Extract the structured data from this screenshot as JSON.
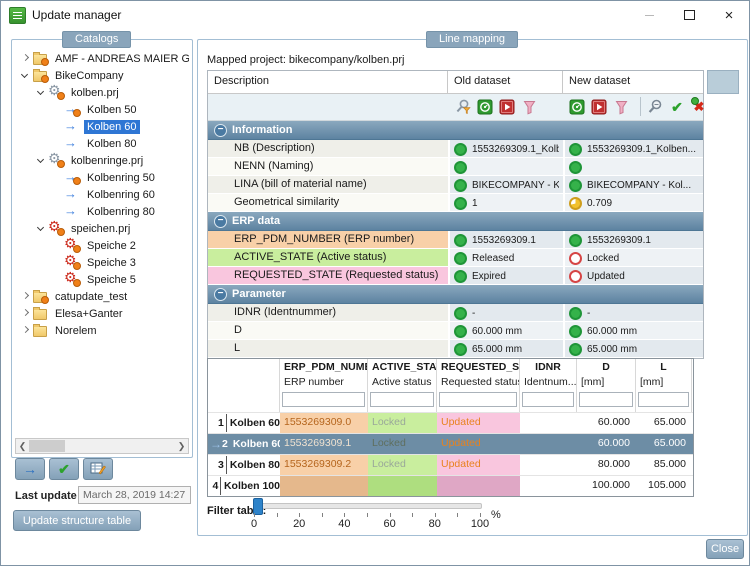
{
  "window": {
    "title": "Update manager",
    "controls": [
      {
        "name": "minimize-button",
        "glyph": "minimize"
      },
      {
        "name": "maximize-button",
        "glyph": "maximize"
      },
      {
        "name": "close-button",
        "glyph": "close"
      }
    ]
  },
  "colors": {
    "selection_blue": "#2e76d4",
    "section_header": "#6f93ad",
    "group_chip": "#8aa5bb",
    "status_ok": "#2fae47",
    "status_error": "#d64545",
    "status_partial": "#f2c12e",
    "erp_tint": "#f8d0a8",
    "active_tint": "#c9ee9e",
    "requested_tint": "#f9c6de",
    "grid_selected_row": "#6d8da5",
    "button_face": "#8fa9bf"
  },
  "catalogs": {
    "label": "Catalogs",
    "items": [
      {
        "label": "AMF - ANDREAS MAIER GMI",
        "level": 0,
        "expander": "collapsed",
        "icon": "folder-badge-icon",
        "selected": false
      },
      {
        "label": "BikeCompany",
        "level": 0,
        "expander": "expanded",
        "icon": "folder-badge-icon",
        "selected": false
      },
      {
        "label": "kolben.prj",
        "level": 1,
        "expander": "expanded",
        "icon": "gear-gray-badge-icon",
        "selected": false
      },
      {
        "label": "Kolben 50",
        "level": 2,
        "expander": "none",
        "icon": "arrow-badge-icon",
        "selected": false
      },
      {
        "label": "Kolben 60",
        "level": 2,
        "expander": "none",
        "icon": "arrow-icon",
        "selected": true
      },
      {
        "label": "Kolben 80",
        "level": 2,
        "expander": "none",
        "icon": "arrow-icon",
        "selected": false
      },
      {
        "label": "kolbenringe.prj",
        "level": 1,
        "expander": "expanded",
        "icon": "gear-gray-badge-icon",
        "selected": false
      },
      {
        "label": "Kolbenring 50",
        "level": 2,
        "expander": "none",
        "icon": "arrow-badge-icon",
        "selected": false
      },
      {
        "label": "Kolbenring 60",
        "level": 2,
        "expander": "none",
        "icon": "arrow-icon",
        "selected": false
      },
      {
        "label": "Kolbenring 80",
        "level": 2,
        "expander": "none",
        "icon": "arrow-icon",
        "selected": false
      },
      {
        "label": "speichen.prj",
        "level": 1,
        "expander": "expanded",
        "icon": "gear-red-badge-icon",
        "selected": false
      },
      {
        "label": "Speiche 2",
        "level": 2,
        "expander": "none",
        "icon": "gear-red-badge-icon",
        "selected": false
      },
      {
        "label": "Speiche 3",
        "level": 2,
        "expander": "none",
        "icon": "gear-red-badge-icon",
        "selected": false
      },
      {
        "label": "Speiche 5",
        "level": 2,
        "expander": "none",
        "icon": "gear-red-badge-icon",
        "selected": false
      },
      {
        "label": "catupdate_test",
        "level": 0,
        "expander": "collapsed",
        "icon": "folder-badge-icon",
        "selected": false
      },
      {
        "label": "Elesa+Ganter",
        "level": 0,
        "expander": "collapsed",
        "icon": "folder-icon",
        "selected": false
      },
      {
        "label": "Norelem",
        "level": 0,
        "expander": "collapsed",
        "icon": "folder-icon",
        "selected": false
      }
    ]
  },
  "line_mapping": {
    "label": "Line mapping",
    "mapped_project": "Mapped project: bikecompany/kolben.prj",
    "columns": {
      "description": "Description",
      "old": "Old dataset",
      "new": "New dataset"
    },
    "toolbar": {
      "old_icons": [
        "detail-search-icon",
        "compute-icon",
        "export-icon",
        "filter-icon"
      ],
      "new_icons": [
        "compute-icon",
        "export-icon",
        "filter-icon"
      ],
      "action_icons": [
        "search-icon",
        "accept-icon",
        "reject-icon"
      ]
    },
    "sections": [
      {
        "title": "Information",
        "rows": [
          {
            "label": "NB (Description)",
            "tint": "",
            "old": {
              "status": "ok",
              "text": "1553269309.1_Kolben..."
            },
            "new": {
              "status": "ok",
              "text": "1553269309.1_Kolben..."
            }
          },
          {
            "label": "NENN (Naming)",
            "tint": "",
            "old": {
              "status": "ok",
              "text": ""
            },
            "new": {
              "status": "ok",
              "text": ""
            }
          },
          {
            "label": "LINA (bill of material name)",
            "tint": "",
            "old": {
              "status": "ok",
              "text": "BIKECOMPANY - Kol..."
            },
            "new": {
              "status": "ok",
              "text": "BIKECOMPANY - Kol..."
            }
          },
          {
            "label": "Geometrical similarity",
            "tint": "",
            "old": {
              "status": "ok",
              "text": "1"
            },
            "new": {
              "status": "partial",
              "text": "0.709"
            }
          }
        ]
      },
      {
        "title": "ERP data",
        "rows": [
          {
            "label": "ERP_PDM_NUMBER (ERP number)",
            "tint": "erp",
            "old": {
              "status": "ok",
              "text": "1553269309.1"
            },
            "new": {
              "status": "ok",
              "text": "1553269309.1"
            }
          },
          {
            "label": "ACTIVE_STATE (Active status)",
            "tint": "active",
            "old": {
              "status": "ok",
              "text": "Released"
            },
            "new": {
              "status": "bad",
              "text": "Locked"
            }
          },
          {
            "label": "REQUESTED_STATE (Requested status)",
            "tint": "requested",
            "old": {
              "status": "ok",
              "text": "Expired"
            },
            "new": {
              "status": "bad",
              "text": "Updated"
            }
          }
        ]
      },
      {
        "title": "Parameter",
        "rows": [
          {
            "label": "IDNR (Identnummer)",
            "tint": "",
            "old": {
              "status": "ok",
              "text": "-"
            },
            "new": {
              "status": "ok",
              "text": "-"
            }
          },
          {
            "label": "D",
            "tint": "",
            "old": {
              "status": "ok",
              "text": "60.000 mm"
            },
            "new": {
              "status": "ok",
              "text": "60.000 mm"
            }
          },
          {
            "label": "L",
            "tint": "",
            "old": {
              "status": "ok",
              "text": "65.000 mm"
            },
            "new": {
              "status": "ok",
              "text": "65.000 mm"
            }
          }
        ]
      }
    ],
    "grid": {
      "columns": [
        {
          "name": "ERP_PDM_NUMBER",
          "desc": "ERP number"
        },
        {
          "name": "ACTIVE_STATE",
          "desc": "Active status"
        },
        {
          "name": "REQUESTED_STATE",
          "desc": "Requested status"
        },
        {
          "name": "IDNR",
          "desc": "Identnum..."
        },
        {
          "name": "D",
          "desc": "[mm]"
        },
        {
          "name": "L",
          "desc": "[mm]"
        }
      ],
      "rows": [
        {
          "num": "1",
          "name": "Kolben 60",
          "erp": "1553269309.0",
          "active": "Locked",
          "requested": "Updated",
          "idnr": "",
          "d": "60.000",
          "l": "65.000",
          "selected": false,
          "unmapped": false
        },
        {
          "num": "2",
          "name": "Kolben 60",
          "erp": "1553269309.1",
          "active": "Locked",
          "requested": "Updated",
          "idnr": "",
          "d": "60.000",
          "l": "65.000",
          "selected": true,
          "unmapped": false
        },
        {
          "num": "3",
          "name": "Kolben 80",
          "erp": "1553269309.2",
          "active": "Locked",
          "requested": "Updated",
          "idnr": "",
          "d": "80.000",
          "l": "85.000",
          "selected": false,
          "unmapped": false
        },
        {
          "num": "4",
          "name": "Kolben 100",
          "erp": "",
          "active": "",
          "requested": "",
          "idnr": "",
          "d": "100.000",
          "l": "105.000",
          "selected": false,
          "unmapped": true
        }
      ]
    },
    "filter": {
      "label": "Filter table:",
      "ticks": [
        "0",
        "20",
        "40",
        "60",
        "80",
        "100"
      ],
      "unit": "%",
      "value": 0
    }
  },
  "footer": {
    "side_buttons": [
      "map-arrow-button",
      "accept-mapping-button",
      "edit-table-button"
    ],
    "last_update_label": "Last update",
    "last_update_value": "March 28, 2019 14:27:19",
    "update_structure_label": "Update structure table",
    "close_label": "Close"
  }
}
